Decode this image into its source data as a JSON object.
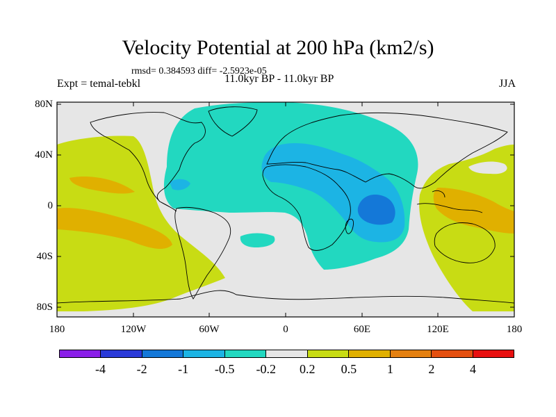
{
  "title": "Velocity Potential at 200 hPa (km2/s)",
  "stats": "rmsd= 0.384593 diff= -2.5923e-05",
  "period": "11.0kyr BP - 11.0kyr BP",
  "expt": "Expt = temal-tebkl",
  "season": "JJA",
  "y_ticks": [
    "80N",
    "40N",
    "0",
    "40S",
    "80S"
  ],
  "x_ticks": [
    "180",
    "120W",
    "60W",
    "0",
    "60E",
    "120E",
    "180"
  ],
  "colorbar": {
    "colors": [
      "#8a1ee8",
      "#2a3ad8",
      "#1478d8",
      "#1cb4e4",
      "#22d8c0",
      "#e6e6e6",
      "#c8dc14",
      "#e0b000",
      "#e48010",
      "#e45010",
      "#e81010"
    ],
    "labels": [
      "-4",
      "-2",
      "-1",
      "-0.5",
      "-0.2",
      "0.2",
      "0.5",
      "1",
      "2",
      "4"
    ]
  }
}
